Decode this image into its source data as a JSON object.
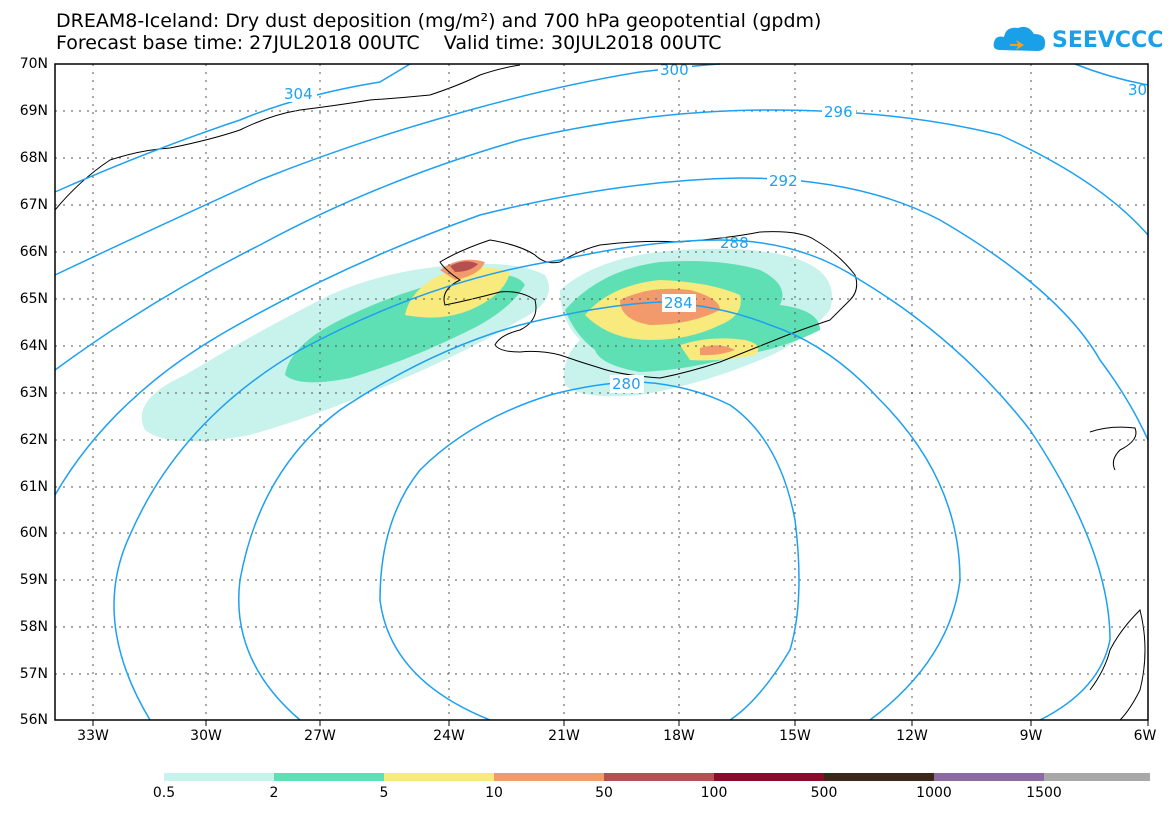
{
  "title_line1": "DREAM8-Iceland: Dry dust deposition (mg/m²) and 700 hPa geopotential (gpdm)",
  "title_line2": "Forecast base time: 27JUL2018 00UTC    Valid time: 30JUL2018 00UTC",
  "logo_text": "SEEVCCC",
  "lat_labels": [
    "70N",
    "69N",
    "68N",
    "67N",
    "66N",
    "65N",
    "64N",
    "63N",
    "62N",
    "61N",
    "60N",
    "59N",
    "58N",
    "57N",
    "56N"
  ],
  "lon_labels": [
    "33W",
    "30W",
    "27W",
    "24W",
    "21W",
    "18W",
    "15W",
    "12W",
    "9W",
    "6W"
  ],
  "contour_labels": [
    "304",
    "300",
    "296",
    "292",
    "288",
    "284",
    "280",
    "30"
  ],
  "colorbar": {
    "colors": [
      "#c8f2ec",
      "#5ee0b4",
      "#f8ea7c",
      "#f39a6c",
      "#b55050",
      "#8b0b2a",
      "#3b2618",
      "#8a6aa0",
      "#a8a8a8"
    ],
    "labels": [
      "0.5",
      "2",
      "5",
      "10",
      "50",
      "100",
      "500",
      "1000",
      "1500"
    ]
  },
  "colors": {
    "contour": "#1ea0f0",
    "coast": "#000000"
  }
}
